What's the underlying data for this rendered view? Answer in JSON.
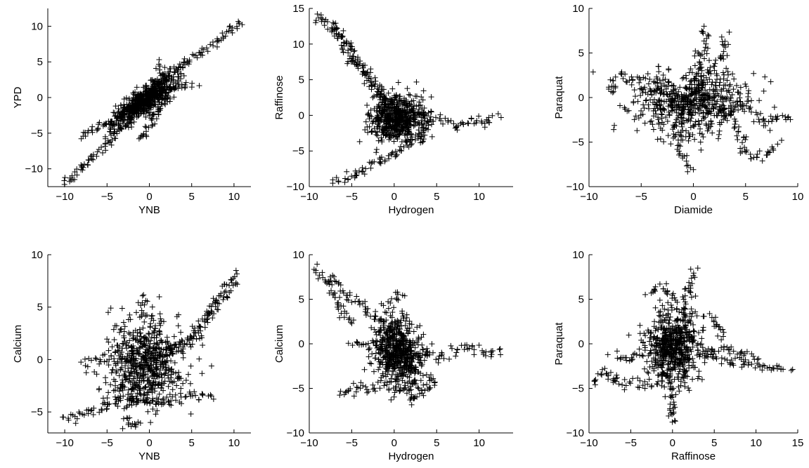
{
  "chart_data": [
    {
      "type": "scatter",
      "marker": "+",
      "color": "#000000",
      "xlabel": "YNB",
      "ylabel": "YPD",
      "xlim": [
        -12,
        12
      ],
      "ylim": [
        -12.5,
        12.5
      ],
      "xticks": [
        -10,
        -5,
        0,
        5,
        10
      ],
      "yticks": [
        -10,
        -5,
        0,
        5,
        10
      ],
      "trails": [
        {
          "pts": [
            [
              -10,
              -12
            ],
            [
              -8,
              -10
            ],
            [
              -6,
              -7.5
            ],
            [
              -4,
              -5
            ],
            [
              -2,
              -2.5
            ],
            [
              0,
              0
            ],
            [
              2,
              2.5
            ],
            [
              4,
              4.5
            ],
            [
              6,
              6
            ],
            [
              8,
              8
            ],
            [
              10,
              10
            ],
            [
              10.8,
              11
            ]
          ],
          "spread": 0.3
        },
        {
          "pts": [
            [
              -8,
              -5.5
            ],
            [
              -6,
              -4
            ],
            [
              -4,
              -3
            ],
            [
              -2,
              -1.5
            ],
            [
              0,
              0
            ],
            [
              2,
              1
            ],
            [
              4,
              1.6
            ],
            [
              5.5,
              2
            ]
          ],
          "spread": 0.3
        },
        {
          "pts": [
            [
              -1,
              -6
            ],
            [
              0,
              -4
            ],
            [
              1,
              -2
            ],
            [
              2,
              0
            ],
            [
              3,
              2
            ]
          ],
          "spread": 0.3
        },
        {
          "pts": [
            [
              0,
              0
            ],
            [
              1,
              2
            ],
            [
              1.5,
              4
            ],
            [
              1,
              5
            ]
          ],
          "spread": 0.3
        },
        {
          "pts": [
            [
              -5,
              -4.5
            ],
            [
              -3,
              -2
            ],
            [
              -1,
              0
            ],
            [
              1,
              2
            ],
            [
              3,
              4
            ],
            [
              4.5,
              4.5
            ]
          ],
          "spread": 0.4
        }
      ],
      "cloud": {
        "center": [
          -0.5,
          -0.5
        ],
        "sx": 1.8,
        "sy": 1.6,
        "rho": 0.8,
        "n": 500
      }
    },
    {
      "type": "scatter",
      "marker": "+",
      "color": "#000000",
      "xlabel": "Hydrogen",
      "ylabel": "Raffinose",
      "xlim": [
        -10,
        14
      ],
      "ylim": [
        -10,
        15
      ],
      "xticks": [
        -10,
        -5,
        0,
        5,
        10
      ],
      "yticks": [
        -10,
        -5,
        0,
        5,
        10,
        15
      ],
      "trails": [
        {
          "pts": [
            [
              -9.5,
              14
            ],
            [
              -8,
              13.5
            ],
            [
              -6.5,
              11
            ],
            [
              -5,
              8
            ],
            [
              -3,
              5.5
            ],
            [
              -1.5,
              3
            ],
            [
              0,
              1
            ]
          ],
          "spread": 0.35
        },
        {
          "pts": [
            [
              -7.5,
              12.5
            ],
            [
              -5.5,
              10
            ],
            [
              -4,
              7
            ],
            [
              -2.5,
              4
            ],
            [
              -1,
              2
            ]
          ],
          "spread": 0.35
        },
        {
          "pts": [
            [
              -7,
              -9.5
            ],
            [
              -5,
              -8.5
            ],
            [
              -3,
              -7
            ],
            [
              -1,
              -6
            ],
            [
              1,
              -4.5
            ],
            [
              3,
              -3
            ],
            [
              4,
              -2
            ]
          ],
          "spread": 0.35
        },
        {
          "pts": [
            [
              3,
              0
            ],
            [
              5,
              -0.5
            ],
            [
              7,
              -1.5
            ],
            [
              9,
              -1
            ],
            [
              11,
              -0.8
            ],
            [
              12.5,
              -0.5
            ]
          ],
          "spread": 0.35
        }
      ],
      "cloud": {
        "center": [
          0.5,
          -0.5
        ],
        "sx": 1.6,
        "sy": 1.6,
        "rho": 0.0,
        "n": 600
      }
    },
    {
      "type": "scatter",
      "marker": "+",
      "color": "#000000",
      "xlabel": "Diamide",
      "ylabel": "Paraquat",
      "xlim": [
        -10,
        10
      ],
      "ylim": [
        -10,
        10
      ],
      "xticks": [
        -10,
        -5,
        0,
        5,
        10
      ],
      "yticks": [
        -10,
        -5,
        0,
        5,
        10
      ],
      "trails": [
        {
          "pts": [
            [
              0,
              0
            ],
            [
              0.5,
              3
            ],
            [
              1,
              6
            ],
            [
              1,
              8
            ]
          ],
          "spread": 0.3
        },
        {
          "pts": [
            [
              -1.5,
              -4
            ],
            [
              -1,
              -6.5
            ],
            [
              -0.5,
              -8.5
            ]
          ],
          "spread": 0.3
        },
        {
          "pts": [
            [
              2,
              -1
            ],
            [
              4,
              -3
            ],
            [
              5,
              -6
            ],
            [
              6,
              -7
            ],
            [
              7.5,
              -6
            ],
            [
              8,
              -5
            ]
          ],
          "spread": 0.3
        },
        {
          "pts": [
            [
              3,
              0
            ],
            [
              5,
              -1
            ],
            [
              7,
              -3
            ],
            [
              8,
              -2
            ],
            [
              9.5,
              -2.5
            ]
          ],
          "spread": 0.3
        },
        {
          "pts": [
            [
              -3,
              1
            ],
            [
              -5,
              2
            ],
            [
              -7,
              2.5
            ],
            [
              -8,
              2
            ],
            [
              -7.5,
              0
            ]
          ],
          "spread": 0.3
        },
        {
          "pts": [
            [
              2,
              3
            ],
            [
              3,
              5
            ],
            [
              3,
              7
            ]
          ],
          "spread": 0.3
        }
      ],
      "cloud": {
        "center": [
          -0.5,
          -0.5
        ],
        "sx": 2.8,
        "sy": 1.9,
        "rho": 0.0,
        "n": 600
      }
    },
    {
      "type": "scatter",
      "marker": "+",
      "color": "#000000",
      "xlabel": "YNB",
      "ylabel": "Calcium",
      "xlim": [
        -12,
        12
      ],
      "ylim": [
        -7,
        10
      ],
      "xticks": [
        -10,
        -5,
        0,
        5,
        10
      ],
      "yticks": [
        -5,
        0,
        5,
        10
      ],
      "trails": [
        {
          "pts": [
            [
              -10,
              -5.8
            ],
            [
              -8,
              -5.3
            ],
            [
              -6,
              -4.8
            ],
            [
              -4,
              -4
            ],
            [
              -2,
              -4
            ],
            [
              0,
              -4.2
            ],
            [
              2,
              -4
            ],
            [
              4,
              -3.5
            ],
            [
              6,
              -3.5
            ],
            [
              7.5,
              -3.8
            ]
          ],
          "spread": 0.25
        },
        {
          "pts": [
            [
              -3,
              -5.5
            ],
            [
              -2,
              -6.5
            ],
            [
              -1,
              -6
            ]
          ],
          "spread": 0.3
        },
        {
          "pts": [
            [
              2,
              1
            ],
            [
              4,
              1
            ],
            [
              5.5,
              2.5
            ],
            [
              7,
              4.5
            ],
            [
              8.5,
              6.5
            ],
            [
              10,
              8
            ],
            [
              10.5,
              8.5
            ]
          ],
          "spread": 0.3
        },
        {
          "pts": [
            [
              2,
              0.5
            ],
            [
              4,
              1.5
            ],
            [
              6,
              3
            ],
            [
              8,
              5
            ],
            [
              10,
              7.5
            ]
          ],
          "spread": 0.3
        },
        {
          "pts": [
            [
              -8,
              -0.5
            ],
            [
              -6,
              0
            ],
            [
              -4,
              0.5
            ]
          ],
          "spread": 0.35
        },
        {
          "pts": [
            [
              -1,
              4
            ],
            [
              -0.5,
              6.2
            ]
          ],
          "spread": 0.35
        }
      ],
      "cloud": {
        "center": [
          -0.5,
          -0.5
        ],
        "sx": 2.2,
        "sy": 2.2,
        "rho": 0.1,
        "n": 650
      }
    },
    {
      "type": "scatter",
      "marker": "+",
      "color": "#000000",
      "xlabel": "Hydrogen",
      "ylabel": "Calcium",
      "xlim": [
        -10,
        14
      ],
      "ylim": [
        -10,
        10
      ],
      "xticks": [
        -10,
        -5,
        0,
        5,
        10
      ],
      "yticks": [
        -10,
        -5,
        0,
        5,
        10
      ],
      "trails": [
        {
          "pts": [
            [
              -9.5,
              8.5
            ],
            [
              -8,
              7.5
            ],
            [
              -6,
              6
            ],
            [
              -4,
              4.5
            ],
            [
              -2,
              2.5
            ],
            [
              0,
              1
            ]
          ],
          "spread": 0.35
        },
        {
          "pts": [
            [
              -8,
              7
            ],
            [
              -6.5,
              4.5
            ],
            [
              -5,
              2
            ]
          ],
          "spread": 0.3
        },
        {
          "pts": [
            [
              -6.5,
              -5.5
            ],
            [
              -4,
              -5
            ],
            [
              -2,
              -4.5
            ],
            [
              0,
              -5
            ],
            [
              2,
              -6
            ],
            [
              4,
              -5
            ],
            [
              5,
              -3
            ]
          ],
          "spread": 0.35
        },
        {
          "pts": [
            [
              -5,
              0
            ],
            [
              -3,
              -0.5
            ],
            [
              -1,
              -1
            ]
          ],
          "spread": 0.3
        },
        {
          "pts": [
            [
              3,
              -1
            ],
            [
              5,
              -1.5
            ],
            [
              7,
              -1
            ],
            [
              9,
              -0.5
            ],
            [
              11,
              -1
            ],
            [
              12.5,
              -1
            ]
          ],
          "spread": 0.35
        },
        {
          "pts": [
            [
              -1,
              4
            ],
            [
              1,
              6
            ]
          ],
          "spread": 0.35
        }
      ],
      "cloud": {
        "center": [
          0.5,
          -1
        ],
        "sx": 1.5,
        "sy": 2.0,
        "rho": -0.2,
        "n": 600
      }
    },
    {
      "type": "scatter",
      "marker": "+",
      "color": "#000000",
      "xlabel": "Raffinose",
      "ylabel": "Paraquat",
      "xlim": [
        -10,
        15
      ],
      "ylim": [
        -10,
        10
      ],
      "xticks": [
        -10,
        -5,
        0,
        5,
        10,
        15
      ],
      "yticks": [
        -10,
        -5,
        0,
        5,
        10
      ],
      "trails": [
        {
          "pts": [
            [
              -9.5,
              -4.5
            ],
            [
              -8,
              -3
            ],
            [
              -6,
              -4.5
            ],
            [
              -4,
              -4.5
            ],
            [
              -2,
              -4.5
            ]
          ],
          "spread": 0.3
        },
        {
          "pts": [
            [
              -7,
              -1.5
            ],
            [
              -5,
              -1.5
            ],
            [
              -3,
              -1
            ]
          ],
          "spread": 0.3
        },
        {
          "pts": [
            [
              3,
              -1
            ],
            [
              5,
              -1.5
            ],
            [
              7,
              -2
            ],
            [
              9,
              -2
            ],
            [
              11,
              -2.5
            ],
            [
              13,
              -3
            ],
            [
              14,
              -2.8
            ]
          ],
          "spread": 0.3
        },
        {
          "pts": [
            [
              4,
              -1
            ],
            [
              6,
              -0.5
            ],
            [
              8,
              -1
            ],
            [
              10,
              -1.5
            ]
          ],
          "spread": 0.3
        },
        {
          "pts": [
            [
              1,
              3
            ],
            [
              2,
              6
            ],
            [
              2.5,
              8.5
            ]
          ],
          "spread": 0.35
        },
        {
          "pts": [
            [
              -0.5,
              -4
            ],
            [
              0,
              -7
            ],
            [
              0,
              -9
            ]
          ],
          "spread": 0.3
        },
        {
          "pts": [
            [
              -3,
              6
            ],
            [
              -1,
              6.5
            ],
            [
              0.5,
              5
            ]
          ],
          "spread": 0.3
        },
        {
          "pts": [
            [
              4,
              3
            ],
            [
              5.5,
              2
            ],
            [
              6,
              0.5
            ]
          ],
          "spread": 0.3
        }
      ],
      "cloud": {
        "center": [
          0,
          -0.3
        ],
        "sx": 1.6,
        "sy": 2.0,
        "rho": 0.0,
        "n": 600
      }
    }
  ]
}
